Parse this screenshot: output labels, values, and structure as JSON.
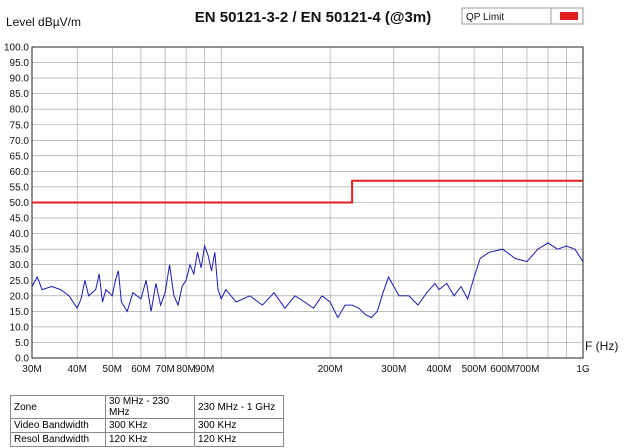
{
  "chart_data": {
    "type": "line",
    "title": "EN 50121-3-2 / EN 50121-4 (@3m)",
    "y_label": "Level  dBµV/m",
    "x_label": "F (Hz)",
    "x_scale": "log",
    "grid": true,
    "legend": "top-right",
    "xlim": [
      30000000,
      1000000000
    ],
    "xticks": [
      {
        "value": 30000000,
        "label": "30M"
      },
      {
        "value": 40000000,
        "label": "40M"
      },
      {
        "value": 50000000,
        "label": "50M"
      },
      {
        "value": 60000000,
        "label": "60M"
      },
      {
        "value": 70000000,
        "label": "70M"
      },
      {
        "value": 80000000,
        "label": "80M"
      },
      {
        "value": 90000000,
        "label": "90M"
      },
      {
        "value": 200000000,
        "label": "200M"
      },
      {
        "value": 300000000,
        "label": "300M"
      },
      {
        "value": 400000000,
        "label": "400M"
      },
      {
        "value": 500000000,
        "label": "500M"
      },
      {
        "value": 600000000,
        "label": "600M"
      },
      {
        "value": 700000000,
        "label": "700M"
      },
      {
        "value": 1000000000,
        "label": "1G"
      }
    ],
    "xminor_ticks": [
      100000000,
      800000000,
      900000000
    ],
    "ylim": [
      0,
      100
    ],
    "yticks": [
      {
        "value": 0,
        "label": "0.0"
      },
      {
        "value": 5,
        "label": "5.0"
      },
      {
        "value": 10,
        "label": "10.0"
      },
      {
        "value": 15,
        "label": "15.0"
      },
      {
        "value": 20,
        "label": "20.0"
      },
      {
        "value": 25,
        "label": "25.0"
      },
      {
        "value": 30,
        "label": "30.0"
      },
      {
        "value": 35,
        "label": "35.0"
      },
      {
        "value": 40,
        "label": "40.0"
      },
      {
        "value": 45,
        "label": "45.0"
      },
      {
        "value": 50,
        "label": "50.0"
      },
      {
        "value": 55,
        "label": "55.0"
      },
      {
        "value": 60,
        "label": "60.0"
      },
      {
        "value": 65,
        "label": "65.0"
      },
      {
        "value": 70,
        "label": "70.0"
      },
      {
        "value": 75,
        "label": "75.0"
      },
      {
        "value": 80,
        "label": "80.0"
      },
      {
        "value": 85,
        "label": "85.0"
      },
      {
        "value": 90,
        "label": "90.0"
      },
      {
        "value": 95,
        "label": "95.0"
      },
      {
        "value": 100,
        "label": "100.0"
      }
    ],
    "series": [
      {
        "name": "QP Limit",
        "color": "#e02020",
        "x": [
          30000000,
          230000000,
          230000000,
          1000000000
        ],
        "values": [
          50,
          50,
          57,
          57
        ]
      },
      {
        "color": "#1c1cb0",
        "x": [
          30000000,
          31000000,
          32000000,
          34000000,
          36000000,
          38000000,
          40000000,
          41000000,
          42000000,
          43000000,
          45000000,
          46000000,
          47000000,
          48000000,
          50000000,
          51000000,
          52000000,
          53000000,
          55000000,
          57000000,
          60000000,
          62000000,
          64000000,
          66000000,
          68000000,
          70000000,
          72000000,
          74000000,
          76000000,
          78000000,
          80000000,
          82000000,
          84000000,
          86000000,
          88000000,
          90000000,
          92000000,
          94000000,
          96000000,
          98000000,
          100000000,
          103000000,
          110000000,
          120000000,
          130000000,
          140000000,
          150000000,
          160000000,
          170000000,
          180000000,
          190000000,
          200000000,
          210000000,
          220000000,
          230000000,
          240000000,
          250000000,
          260000000,
          270000000,
          280000000,
          290000000,
          300000000,
          310000000,
          330000000,
          350000000,
          370000000,
          390000000,
          400000000,
          420000000,
          440000000,
          460000000,
          480000000,
          500000000,
          520000000,
          550000000,
          600000000,
          650000000,
          700000000,
          750000000,
          800000000,
          850000000,
          900000000,
          950000000,
          1000000000
        ],
        "values": [
          23,
          26,
          22,
          23,
          22,
          20,
          16,
          19,
          25,
          20,
          22,
          27,
          18,
          22,
          20,
          25,
          28,
          18,
          15,
          21,
          19,
          25,
          15,
          24,
          17,
          21,
          30,
          20,
          17,
          23,
          25,
          30,
          27,
          34,
          29,
          36,
          33,
          28,
          34,
          22,
          19,
          22,
          18,
          20,
          17,
          21,
          16,
          20,
          18,
          16,
          20,
          18,
          13,
          17,
          17,
          16,
          14,
          13,
          15,
          21,
          26,
          23,
          20,
          20,
          17,
          21,
          24,
          22,
          24,
          20,
          23,
          19,
          26,
          32,
          34,
          35,
          32,
          31,
          35,
          37,
          35,
          36,
          35,
          31
        ]
      }
    ]
  },
  "table": {
    "rows": [
      [
        "Zone",
        "30 MHz - 230 MHz",
        "230 MHz - 1 GHz"
      ],
      [
        "Video Bandwidth",
        "300 KHz",
        "300 KHz"
      ],
      [
        "Resol Bandwidth",
        "120 KHz",
        "120 KHz"
      ]
    ]
  }
}
